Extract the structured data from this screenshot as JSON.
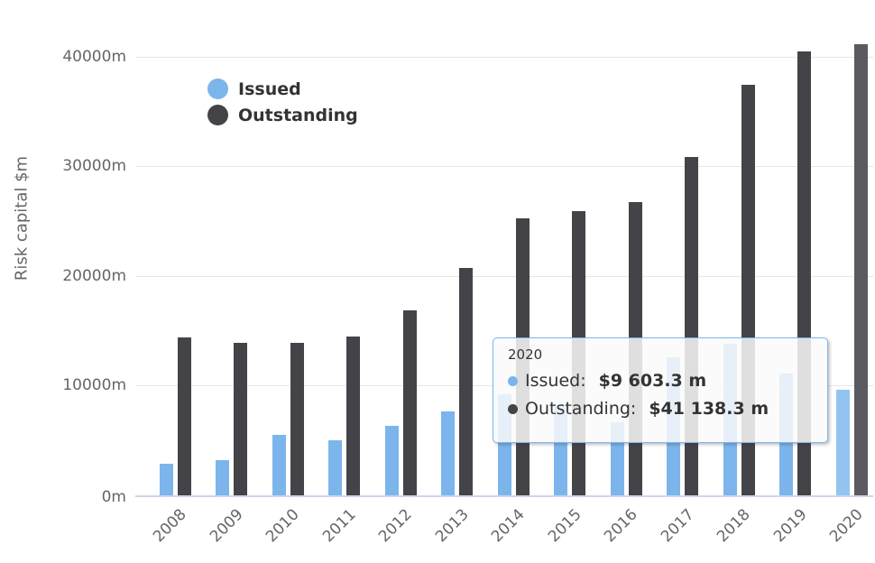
{
  "chart_data": {
    "type": "bar",
    "title": "",
    "ylabel": "Risk capital $m",
    "xlabel": "",
    "grid": true,
    "legend_position": "top-left-inset",
    "categories": [
      "2008",
      "2009",
      "2010",
      "2011",
      "2012",
      "2013",
      "2014",
      "2015",
      "2016",
      "2017",
      "2018",
      "2019",
      "2020"
    ],
    "series": [
      {
        "name": "Issued",
        "color": "#7cb5ec",
        "hover_color": "#93c4f1",
        "values": [
          2900,
          3200,
          5500,
          5000,
          6300,
          7650,
          9250,
          8250,
          6650,
          12550,
          13800,
          11100,
          9603.3
        ]
      },
      {
        "name": "Outstanding",
        "color": "#434348",
        "hover_color": "#5a5a60",
        "values": [
          14400,
          13900,
          13900,
          14450,
          16850,
          20700,
          25250,
          25900,
          26700,
          30850,
          37400,
          40500,
          41138.3
        ]
      }
    ],
    "ylim": [
      0,
      45000
    ],
    "yticks": [
      {
        "value": 0,
        "label": "0m"
      },
      {
        "value": 10000,
        "label": "10000m"
      },
      {
        "value": 20000,
        "label": "20000m"
      },
      {
        "value": 30000,
        "label": "30000m"
      },
      {
        "value": 40000,
        "label": "40000m"
      }
    ],
    "hovered_category": "2020"
  },
  "legend": {
    "items": [
      {
        "label": "Issued",
        "color": "#7cb5ec"
      },
      {
        "label": "Outstanding",
        "color": "#434348"
      }
    ]
  },
  "tooltip": {
    "header": "2020",
    "rows": [
      {
        "label": "Issued:",
        "value": "$9 603.3 m",
        "color": "#7cb5ec"
      },
      {
        "label": "Outstanding:",
        "value": "$41 138.3 m",
        "color": "#434348"
      }
    ]
  },
  "colors": {
    "grid": "#e6e6e6",
    "axis_line": "#ccd6eb",
    "tick_text": "#666666",
    "legend_text": "#333333",
    "tooltip_border": "#7cb5ec"
  }
}
